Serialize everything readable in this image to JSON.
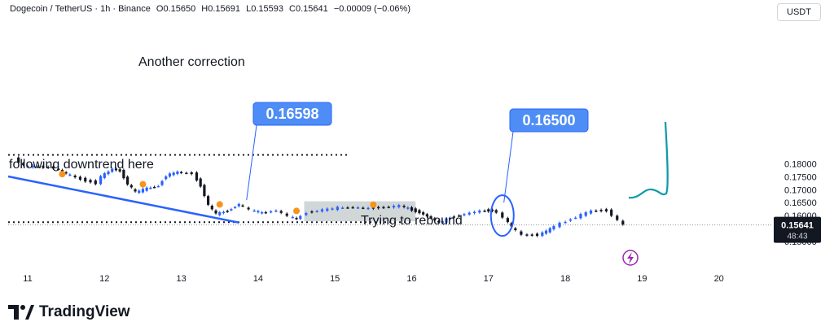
{
  "header": {
    "symbol": "Dogecoin / TetherUS · 1h · Binance",
    "open": "O0.15650",
    "high": "H0.15691",
    "low": "L0.15593",
    "close": "C0.15641",
    "change": "−0.00009 (−0.06%)"
  },
  "currency_button": "USDT",
  "brand": {
    "name": "TradingView"
  },
  "price_label": {
    "price": "0.15641",
    "countdown": "48:43"
  },
  "icons": {
    "alert": "lightning-icon",
    "logo": "tradingview-logo-icon"
  },
  "colors": {
    "up": "#2962ff",
    "down": "#131722",
    "annotation": "#2962ff",
    "marker": "#f7931a",
    "projection": "#0e9aa7"
  },
  "chart_data": {
    "type": "candlestick",
    "title": "",
    "xlabel": "",
    "ylabel": "",
    "x_ticks": [
      "11",
      "12",
      "13",
      "14",
      "15",
      "16",
      "17",
      "18",
      "19",
      "20"
    ],
    "y_ticks": [
      "0.15000",
      "0.15500",
      "0.16000",
      "0.16500",
      "0.17000",
      "0.17500",
      "0.18000"
    ],
    "ylim": [
      0.1465,
      0.1863
    ],
    "grid": false,
    "annotations": [
      {
        "text": "Another correction"
      },
      {
        "text": "following downtrend here"
      },
      {
        "text": "Trying to rebound"
      }
    ],
    "callouts": [
      {
        "text": "0.16598",
        "value": 0.16598,
        "day": 13.85
      },
      {
        "text": "0.16500",
        "value": 0.165,
        "day": 17.2
      }
    ],
    "levels": [
      {
        "value": 0.1834
      },
      {
        "value": 0.15745
      }
    ],
    "close_series": [
      {
        "day": 10.88,
        "close": 0.1821
      },
      {
        "day": 11.0,
        "close": 0.1792
      },
      {
        "day": 11.2,
        "close": 0.1788
      },
      {
        "day": 11.4,
        "close": 0.1784
      },
      {
        "day": 11.55,
        "close": 0.1762
      },
      {
        "day": 11.75,
        "close": 0.174
      },
      {
        "day": 11.95,
        "close": 0.1725
      },
      {
        "day": 12.0,
        "close": 0.175
      },
      {
        "day": 12.15,
        "close": 0.178
      },
      {
        "day": 12.25,
        "close": 0.1772
      },
      {
        "day": 12.35,
        "close": 0.1722
      },
      {
        "day": 12.45,
        "close": 0.169
      },
      {
        "day": 12.6,
        "close": 0.1705
      },
      {
        "day": 12.75,
        "close": 0.1715
      },
      {
        "day": 12.85,
        "close": 0.1755
      },
      {
        "day": 13.0,
        "close": 0.1768
      },
      {
        "day": 13.2,
        "close": 0.1762
      },
      {
        "day": 13.3,
        "close": 0.1715
      },
      {
        "day": 13.4,
        "close": 0.164
      },
      {
        "day": 13.5,
        "close": 0.1606
      },
      {
        "day": 13.65,
        "close": 0.1618
      },
      {
        "day": 13.8,
        "close": 0.1645
      },
      {
        "day": 13.95,
        "close": 0.1622
      },
      {
        "day": 14.1,
        "close": 0.161
      },
      {
        "day": 14.3,
        "close": 0.162
      },
      {
        "day": 14.45,
        "close": 0.1598
      },
      {
        "day": 14.55,
        "close": 0.1586
      },
      {
        "day": 14.7,
        "close": 0.1612
      },
      {
        "day": 14.9,
        "close": 0.1622
      },
      {
        "day": 15.1,
        "close": 0.163
      },
      {
        "day": 15.3,
        "close": 0.1632
      },
      {
        "day": 15.5,
        "close": 0.1628
      },
      {
        "day": 15.7,
        "close": 0.1632
      },
      {
        "day": 15.9,
        "close": 0.1638
      },
      {
        "day": 16.05,
        "close": 0.1622
      },
      {
        "day": 16.15,
        "close": 0.1612
      },
      {
        "day": 16.3,
        "close": 0.159
      },
      {
        "day": 16.4,
        "close": 0.1572
      },
      {
        "day": 16.55,
        "close": 0.1592
      },
      {
        "day": 16.75,
        "close": 0.1606
      },
      {
        "day": 16.95,
        "close": 0.1618
      },
      {
        "day": 17.1,
        "close": 0.162
      },
      {
        "day": 17.18,
        "close": 0.1612
      },
      {
        "day": 17.25,
        "close": 0.1592
      },
      {
        "day": 17.35,
        "close": 0.1556
      },
      {
        "day": 17.5,
        "close": 0.1525
      },
      {
        "day": 17.7,
        "close": 0.1525
      },
      {
        "day": 17.85,
        "close": 0.1548
      },
      {
        "day": 18.0,
        "close": 0.157
      },
      {
        "day": 18.2,
        "close": 0.1595
      },
      {
        "day": 18.4,
        "close": 0.1618
      },
      {
        "day": 18.6,
        "close": 0.162
      },
      {
        "day": 18.75,
        "close": 0.1582
      },
      {
        "day": 18.8,
        "close": 0.15641
      }
    ],
    "highlighted_range": {
      "day_start": 14.6,
      "day_end": 16.05,
      "price_low": 0.1578,
      "price_high": 0.1655
    }
  }
}
